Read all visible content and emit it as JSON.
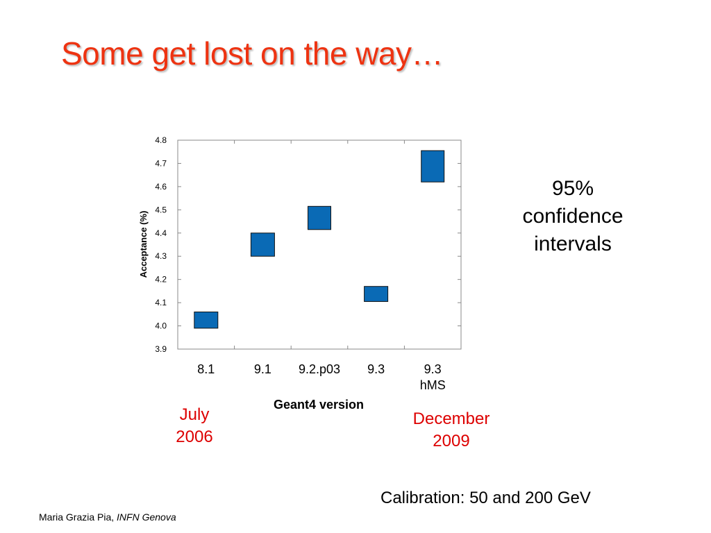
{
  "slide": {
    "title": "Some get lost on the way…",
    "note": [
      "95%",
      "confidence",
      "intervals"
    ],
    "date_start": [
      "July",
      "2006"
    ],
    "date_end": [
      "December",
      "2009"
    ],
    "calibration": "Calibration: 50 and 200 GeV",
    "footer_author": "Maria Grazia Pia,",
    "footer_affiliation": "INFN Genova",
    "colors": {
      "title": "#ee3311",
      "marker": "#0a6ab5",
      "date_text": "#dd0000"
    }
  },
  "chart_data": {
    "type": "scatter",
    "marker_shape": "rectangle spanning 95% confidence interval",
    "categories": [
      "8.1",
      "9.1",
      "9.2.p03",
      "9.3",
      "9.3 hMS"
    ],
    "category_lines": [
      [
        "8.1"
      ],
      [
        "9.1"
      ],
      [
        "9.2.p03"
      ],
      [
        "9.3"
      ],
      [
        "9.3",
        "hMS"
      ]
    ],
    "series": [
      {
        "values": [
          4.026,
          4.35,
          4.465,
          4.14,
          4.69
        ],
        "ci_low": [
          3.99,
          4.3,
          4.415,
          4.105,
          4.62
        ],
        "ci_high": [
          4.06,
          4.4,
          4.515,
          4.17,
          4.755
        ]
      }
    ],
    "xlabel": "Geant4 version",
    "ylabel": "Acceptance (%)",
    "ylim": [
      3.9,
      4.8
    ],
    "yticks": [
      "3.9",
      "4.0",
      "4.1",
      "4.2",
      "4.3",
      "4.4",
      "4.5",
      "4.6",
      "4.7",
      "4.8"
    ],
    "grid": false,
    "legend": "none"
  }
}
